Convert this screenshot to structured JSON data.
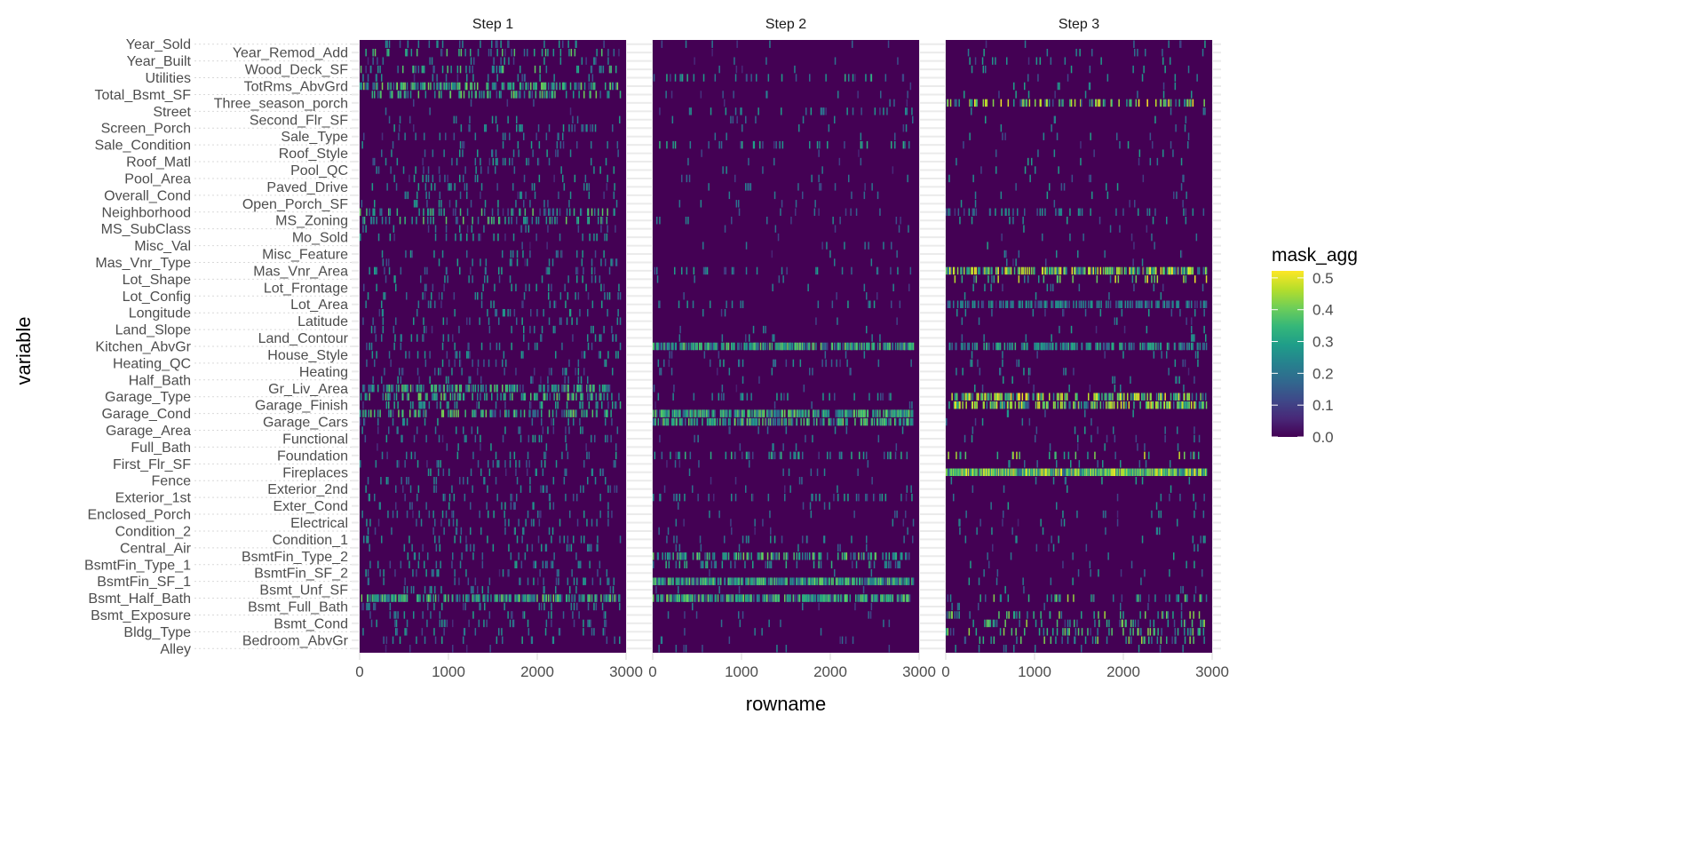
{
  "chart_data": {
    "type": "heatmap",
    "facets": [
      "Step 1",
      "Step 2",
      "Step 3"
    ],
    "xlabel": "rowname",
    "ylabel": "variable",
    "xlim": [
      0,
      3000
    ],
    "n_rows": 2930,
    "x_ticks": [
      "0",
      "1000",
      "2000",
      "3000"
    ],
    "x_tick_values": [
      0,
      1000,
      2000,
      3000
    ],
    "legend": {
      "title": "mask_agg",
      "placement": "right",
      "range": [
        0,
        0.522
      ],
      "ticks": [
        "0.0",
        "0.1",
        "0.2",
        "0.3",
        "0.4",
        "0.5"
      ],
      "tick_values": [
        0,
        0.1,
        0.2,
        0.3,
        0.4,
        0.5
      ],
      "palette": [
        "#440154",
        "#482878",
        "#3e4989",
        "#31688e",
        "#26828e",
        "#1f9e89",
        "#35b779",
        "#6ece58",
        "#b5de2b",
        "#fde725"
      ]
    },
    "variables": [
      "Year_Sold",
      "Year_Remod_Add",
      "Year_Built",
      "Wood_Deck_SF",
      "Utilities",
      "TotRms_AbvGrd",
      "Total_Bsmt_SF",
      "Three_season_porch",
      "Street",
      "Second_Flr_SF",
      "Screen_Porch",
      "Sale_Type",
      "Sale_Condition",
      "Roof_Style",
      "Roof_Matl",
      "Pool_QC",
      "Pool_Area",
      "Paved_Drive",
      "Overall_Cond",
      "Open_Porch_SF",
      "Neighborhood",
      "MS_Zoning",
      "MS_SubClass",
      "Mo_Sold",
      "Misc_Val",
      "Misc_Feature",
      "Mas_Vnr_Type",
      "Mas_Vnr_Area",
      "Lot_Shape",
      "Lot_Frontage",
      "Lot_Config",
      "Lot_Area",
      "Longitude",
      "Latitude",
      "Land_Slope",
      "Land_Contour",
      "Kitchen_AbvGr",
      "House_Style",
      "Heating_QC",
      "Heating",
      "Half_Bath",
      "Gr_Liv_Area",
      "Garage_Type",
      "Garage_Finish",
      "Garage_Cond",
      "Garage_Cars",
      "Garage_Area",
      "Functional",
      "Full_Bath",
      "Foundation",
      "First_Flr_SF",
      "Fireplaces",
      "Fence",
      "Exterior_2nd",
      "Exterior_1st",
      "Exter_Cond",
      "Enclosed_Porch",
      "Electrical",
      "Condition_2",
      "Condition_1",
      "Central_Air",
      "BsmtFin_Type_2",
      "BsmtFin_Type_1",
      "BsmtFin_SF_2",
      "BsmtFin_SF_1",
      "Bsmt_Unf_SF",
      "Bsmt_Half_Bath",
      "Bsmt_Full_Bath",
      "Bsmt_Exposure",
      "Bsmt_Cond",
      "Bldg_Type",
      "Bedroom_AbvGr",
      "Alley"
    ],
    "activity_note_fields": [
      "fraction_of_rows_nonzero",
      "max_mask_agg"
    ],
    "steps": [
      {
        "default": [
          0.06,
          0.3
        ],
        "rows": {
          "Year_Remod_Add": [
            0.12,
            0.4
          ],
          "Wood_Deck_SF": [
            0.12,
            0.4
          ],
          "TotRms_AbvGrd": [
            0.35,
            0.42
          ],
          "Total_Bsmt_SF": [
            0.2,
            0.42
          ],
          "Three_season_porch": [
            0.01,
            0.2
          ],
          "Street": [
            0.01,
            0.2
          ],
          "Neighborhood": [
            0.2,
            0.4
          ],
          "MS_Zoning": [
            0.15,
            0.4
          ],
          "Misc_Val": [
            0.01,
            0.2
          ],
          "Gr_Liv_Area": [
            0.3,
            0.4
          ],
          "Garage_Type": [
            0.25,
            0.42
          ],
          "Garage_Finish": [
            0.12,
            0.35
          ],
          "Garage_Cond": [
            0.25,
            0.42
          ],
          "Bsmt_Full_Bath": [
            0.1,
            0.3
          ],
          "Bsmt_Half_Bath": [
            0.4,
            0.42
          ],
          "Alley": [
            0.02,
            0.2
          ]
        }
      },
      {
        "default": [
          0.015,
          0.25
        ],
        "rows": {
          "Utilities": [
            0.12,
            0.35
          ],
          "Street": [
            0.1,
            0.3
          ],
          "Sale_Condition": [
            0.1,
            0.35
          ],
          "Mas_Vnr_Area": [
            0.06,
            0.3
          ],
          "Lot_Area": [
            0.06,
            0.3
          ],
          "Kitchen_AbvGr": [
            0.55,
            0.42
          ],
          "Heating_QC": [
            0.06,
            0.3
          ],
          "Garage_Type": [
            0.06,
            0.3
          ],
          "Garage_Cond": [
            0.6,
            0.42
          ],
          "Garage_Cars": [
            0.5,
            0.42
          ],
          "Foundation": [
            0.12,
            0.35
          ],
          "Exterior_1st": [
            0.1,
            0.3
          ],
          "Condition_1": [
            0.06,
            0.3
          ],
          "BsmtFin_Type_2": [
            0.3,
            0.42
          ],
          "BsmtFin_Type_1": [
            0.12,
            0.35
          ],
          "BsmtFin_SF_1": [
            0.65,
            0.42
          ],
          "Bsmt_Half_Bath": [
            0.5,
            0.42
          ]
        }
      },
      {
        "default": [
          0.02,
          0.3
        ],
        "rows": {
          "Three_season_porch": [
            0.25,
            0.52
          ],
          "Neighborhood": [
            0.15,
            0.3
          ],
          "Mas_Vnr_Area": [
            0.45,
            0.52
          ],
          "Lot_Shape": [
            0.1,
            0.52
          ],
          "Lot_Area": [
            0.35,
            0.3
          ],
          "Longitude": [
            0.05,
            0.3
          ],
          "Kitchen_AbvGr": [
            0.4,
            0.35
          ],
          "Garage_Type": [
            0.35,
            0.52
          ],
          "Garage_Finish": [
            0.4,
            0.52
          ],
          "Foundation": [
            0.06,
            0.5
          ],
          "Fireplaces": [
            0.95,
            0.52
          ],
          "Bsmt_Half_Bath": [
            0.12,
            0.45
          ],
          "Bsmt_Exposure": [
            0.12,
            0.45
          ],
          "Bsmt_Cond": [
            0.12,
            0.45
          ],
          "Bldg_Type": [
            0.12,
            0.45
          ],
          "Bedroom_AbvGr": [
            0.12,
            0.45
          ]
        }
      }
    ]
  }
}
